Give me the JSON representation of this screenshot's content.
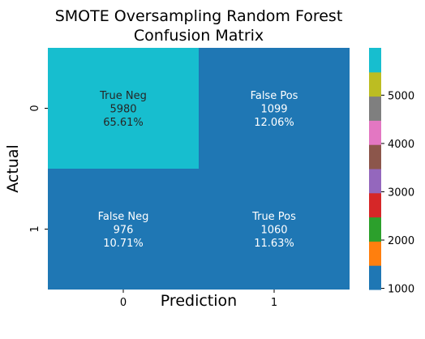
{
  "chart_data": {
    "type": "heatmap",
    "title_lines": [
      "SMOTE Oversampling Random Forest",
      "Confusion Matrix"
    ],
    "xlabel": "Prediction",
    "ylabel": "Actual",
    "x_tick_labels": [
      "0",
      "1"
    ],
    "y_tick_labels": [
      "0",
      "1"
    ],
    "cells": [
      {
        "row": 0,
        "col": 0,
        "lines": [
          "True Neg",
          "5980",
          "65.61%"
        ],
        "value": 5980,
        "text_color": "#262626"
      },
      {
        "row": 0,
        "col": 1,
        "lines": [
          "False Pos",
          "1099",
          "12.06%"
        ],
        "value": 1099,
        "text_color": "#ffffff"
      },
      {
        "row": 1,
        "col": 0,
        "lines": [
          "False Neg",
          "976",
          "10.71%"
        ],
        "value": 976,
        "text_color": "#ffffff"
      },
      {
        "row": 1,
        "col": 1,
        "lines": [
          "True Pos",
          "1060",
          "11.63%"
        ],
        "value": 1060,
        "text_color": "#ffffff"
      }
    ],
    "colormap": "tab10",
    "colormap_colors": [
      "#1f77b4",
      "#ff7f0e",
      "#2ca02c",
      "#d62728",
      "#9467bd",
      "#8c564b",
      "#e377c2",
      "#7f7f7f",
      "#bcbd22",
      "#17becf"
    ],
    "vmin": 976,
    "vmax": 5980,
    "colorbar_ticks": [
      1000,
      2000,
      3000,
      4000,
      5000
    ],
    "colorbar_tick_labels": [
      "1000",
      "2000",
      "3000",
      "4000",
      "5000"
    ],
    "grid": false,
    "legend": "colorbar-right"
  }
}
